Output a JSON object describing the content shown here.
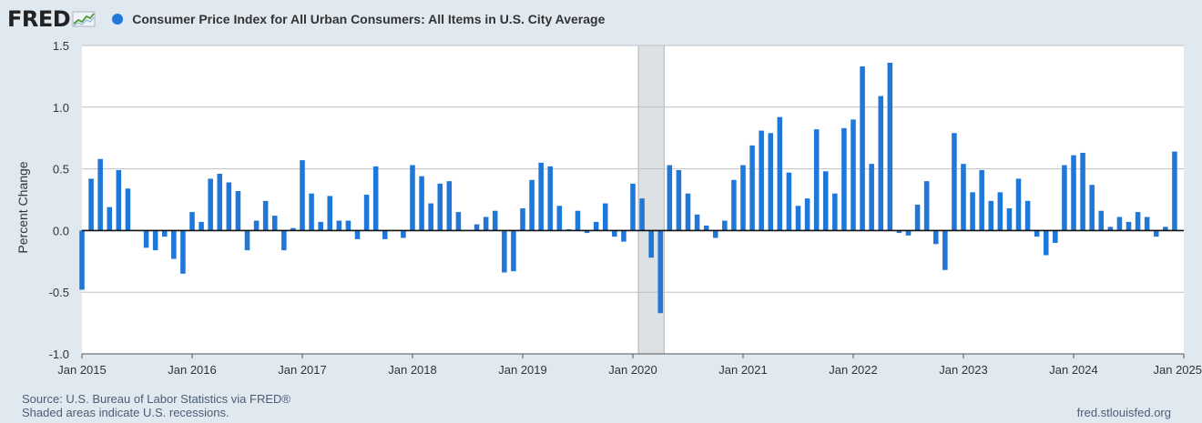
{
  "brand": {
    "logo_text": "FRED",
    "logo_icon": "line-graph-icon"
  },
  "footer": {
    "source": "U.S. Bureau of Labor Statistics via FRED®",
    "recession_note": "Shaded areas indicate U.S. recessions.",
    "site": "fred.stlouisfed.org"
  },
  "colors": {
    "bar": "#1f77d9",
    "background": "#e1e9f0",
    "plot_bg": "#ffffff",
    "recession": "#dde1e4",
    "grid": "#bfbfbf"
  },
  "chart_data": {
    "type": "bar",
    "title": "Consumer Price Index for All Urban Consumers: All Items in U.S. City Average",
    "ylabel": "Percent Change",
    "xlabel": "",
    "ylim": [
      -1.0,
      1.5
    ],
    "yticks": [
      -1.0,
      -0.5,
      0.0,
      0.5,
      1.0,
      1.5
    ],
    "ytick_labels": [
      "-1.0",
      "-0.5",
      "0.0",
      "0.5",
      "1.0",
      "1.5"
    ],
    "xticks": [
      "Jan 2015",
      "Jan 2016",
      "Jan 2017",
      "Jan 2018",
      "Jan 2019",
      "Jan 2020",
      "Jan 2021",
      "Jan 2022",
      "Jan 2023",
      "Jan 2024",
      "Jan 2025"
    ],
    "x_start": "Jan 2015",
    "x_end": "Jan 2025",
    "grid": true,
    "legend": "top-left",
    "recessions": [
      {
        "start": "Feb 2020",
        "end": "Apr 2020"
      }
    ],
    "series": [
      {
        "name": "Consumer Price Index for All Urban Consumers: All Items in U.S. City Average",
        "color": "#1f77d9",
        "x": [
          "Jan 2015",
          "Feb 2015",
          "Mar 2015",
          "Apr 2015",
          "May 2015",
          "Jun 2015",
          "Jul 2015",
          "Aug 2015",
          "Sep 2015",
          "Oct 2015",
          "Nov 2015",
          "Dec 2015",
          "Jan 2016",
          "Feb 2016",
          "Mar 2016",
          "Apr 2016",
          "May 2016",
          "Jun 2016",
          "Jul 2016",
          "Aug 2016",
          "Sep 2016",
          "Oct 2016",
          "Nov 2016",
          "Dec 2016",
          "Jan 2017",
          "Feb 2017",
          "Mar 2017",
          "Apr 2017",
          "May 2017",
          "Jun 2017",
          "Jul 2017",
          "Aug 2017",
          "Sep 2017",
          "Oct 2017",
          "Nov 2017",
          "Dec 2017",
          "Jan 2018",
          "Feb 2018",
          "Mar 2018",
          "Apr 2018",
          "May 2018",
          "Jun 2018",
          "Jul 2018",
          "Aug 2018",
          "Sep 2018",
          "Oct 2018",
          "Nov 2018",
          "Dec 2018",
          "Jan 2019",
          "Feb 2019",
          "Mar 2019",
          "Apr 2019",
          "May 2019",
          "Jun 2019",
          "Jul 2019",
          "Aug 2019",
          "Sep 2019",
          "Oct 2019",
          "Nov 2019",
          "Dec 2019",
          "Jan 2020",
          "Feb 2020",
          "Mar 2020",
          "Apr 2020",
          "May 2020",
          "Jun 2020",
          "Jul 2020",
          "Aug 2020",
          "Sep 2020",
          "Oct 2020",
          "Nov 2020",
          "Dec 2020",
          "Jan 2021",
          "Feb 2021",
          "Mar 2021",
          "Apr 2021",
          "May 2021",
          "Jun 2021",
          "Jul 2021",
          "Aug 2021",
          "Sep 2021",
          "Oct 2021",
          "Nov 2021",
          "Dec 2021",
          "Jan 2022",
          "Feb 2022",
          "Mar 2022",
          "Apr 2022",
          "May 2022",
          "Jun 2022",
          "Jul 2022",
          "Aug 2022",
          "Sep 2022",
          "Oct 2022",
          "Nov 2022",
          "Dec 2022",
          "Jan 2023",
          "Feb 2023",
          "Mar 2023",
          "Apr 2023",
          "May 2023",
          "Jun 2023",
          "Jul 2023",
          "Aug 2023",
          "Sep 2023",
          "Oct 2023",
          "Nov 2023",
          "Dec 2023",
          "Jan 2024",
          "Feb 2024",
          "Mar 2024",
          "Apr 2024",
          "May 2024",
          "Jun 2024",
          "Jul 2024",
          "Aug 2024",
          "Sep 2024",
          "Oct 2024",
          "Nov 2024",
          "Dec 2024",
          "Jan 2025"
        ],
        "values": [
          -0.48,
          0.42,
          0.58,
          0.19,
          0.49,
          0.34,
          0.0,
          -0.14,
          -0.16,
          -0.05,
          -0.23,
          -0.35,
          0.15,
          0.07,
          0.42,
          0.46,
          0.39,
          0.32,
          -0.16,
          0.08,
          0.24,
          0.12,
          -0.16,
          0.02,
          0.57,
          0.3,
          0.07,
          0.28,
          0.08,
          0.08,
          -0.07,
          0.29,
          0.52,
          -0.07,
          0.0,
          -0.06,
          0.53,
          0.44,
          0.22,
          0.38,
          0.4,
          0.15,
          0.0,
          0.05,
          0.11,
          0.16,
          -0.34,
          -0.33,
          0.18,
          0.41,
          0.55,
          0.52,
          0.2,
          0.01,
          0.16,
          -0.02,
          0.07,
          0.22,
          -0.05,
          -0.09,
          0.38,
          0.26,
          -0.22,
          -0.67,
          0.53,
          0.49,
          0.3,
          0.13,
          0.04,
          -0.06,
          0.08,
          0.41,
          0.53,
          0.69,
          0.81,
          0.79,
          0.92,
          0.47,
          0.2,
          0.26,
          0.82,
          0.48,
          0.3,
          0.83,
          0.9,
          1.33,
          0.54,
          1.09,
          1.36,
          -0.02,
          -0.04,
          0.21,
          0.4,
          -0.11,
          -0.32,
          0.79,
          0.54,
          0.31,
          0.49,
          0.24,
          0.31,
          0.18,
          0.42,
          0.24,
          -0.05,
          -0.2,
          -0.1,
          0.53,
          0.61,
          0.63,
          0.37,
          0.16,
          0.03,
          0.11,
          0.07,
          0.15,
          0.11,
          -0.05,
          0.03,
          0.64,
          0.0
        ]
      }
    ]
  }
}
